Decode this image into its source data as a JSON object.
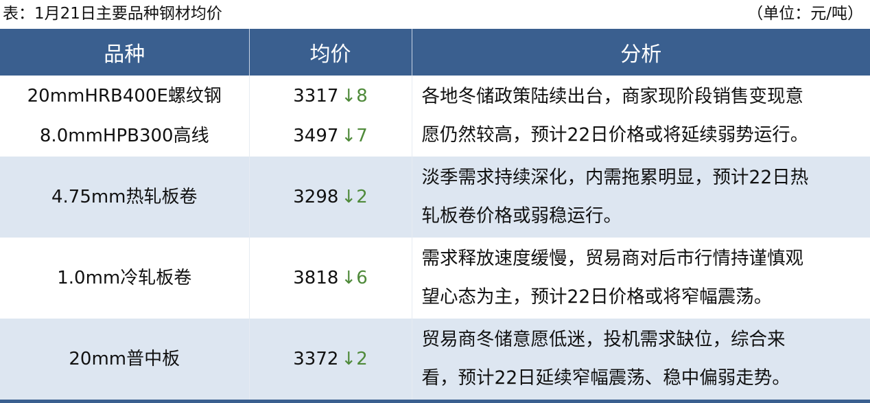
{
  "caption": {
    "title": "表：1月21日主要品种钢材均价",
    "unit": "（单位：元/吨）"
  },
  "colors": {
    "header_bg": "#3a5f8f",
    "alt_row_bg": "#dde6f1",
    "down_color": "#4f8a3a"
  },
  "headers": [
    "品种",
    "均价",
    "分析"
  ],
  "rows": [
    {
      "items": [
        {
          "name": "20mmHRB400E螺纹钢",
          "price": "3317",
          "change": "↓8"
        },
        {
          "name": "8.0mmHPB300高线",
          "price": "3497",
          "change": "↓7"
        }
      ],
      "analysis": [
        "各地冬储政策陆续出台，商家现阶段销售变现意",
        "愿仍然较高，预计22日价格或将延续弱势运行。"
      ]
    },
    {
      "items": [
        {
          "name": "4.75mm热轧板卷",
          "price": "3298",
          "change": "↓2"
        }
      ],
      "analysis": [
        "淡季需求持续深化，内需拖累明显，预计22日热",
        "轧板卷价格或弱稳运行。"
      ]
    },
    {
      "items": [
        {
          "name": "1.0mm冷轧板卷",
          "price": "3818",
          "change": "↓6"
        }
      ],
      "analysis": [
        "需求释放速度缓慢，贸易商对后市行情持谨慎观",
        "望心态为主，预计22日价格或将窄幅震荡。"
      ]
    },
    {
      "items": [
        {
          "name": "20mm普中板",
          "price": "3372",
          "change": "↓2"
        }
      ],
      "analysis": [
        "贸易商冬储意愿低迷，投机需求缺位，综合来",
        "看，预计22日延续窄幅震荡、稳中偏弱走势。"
      ]
    }
  ]
}
